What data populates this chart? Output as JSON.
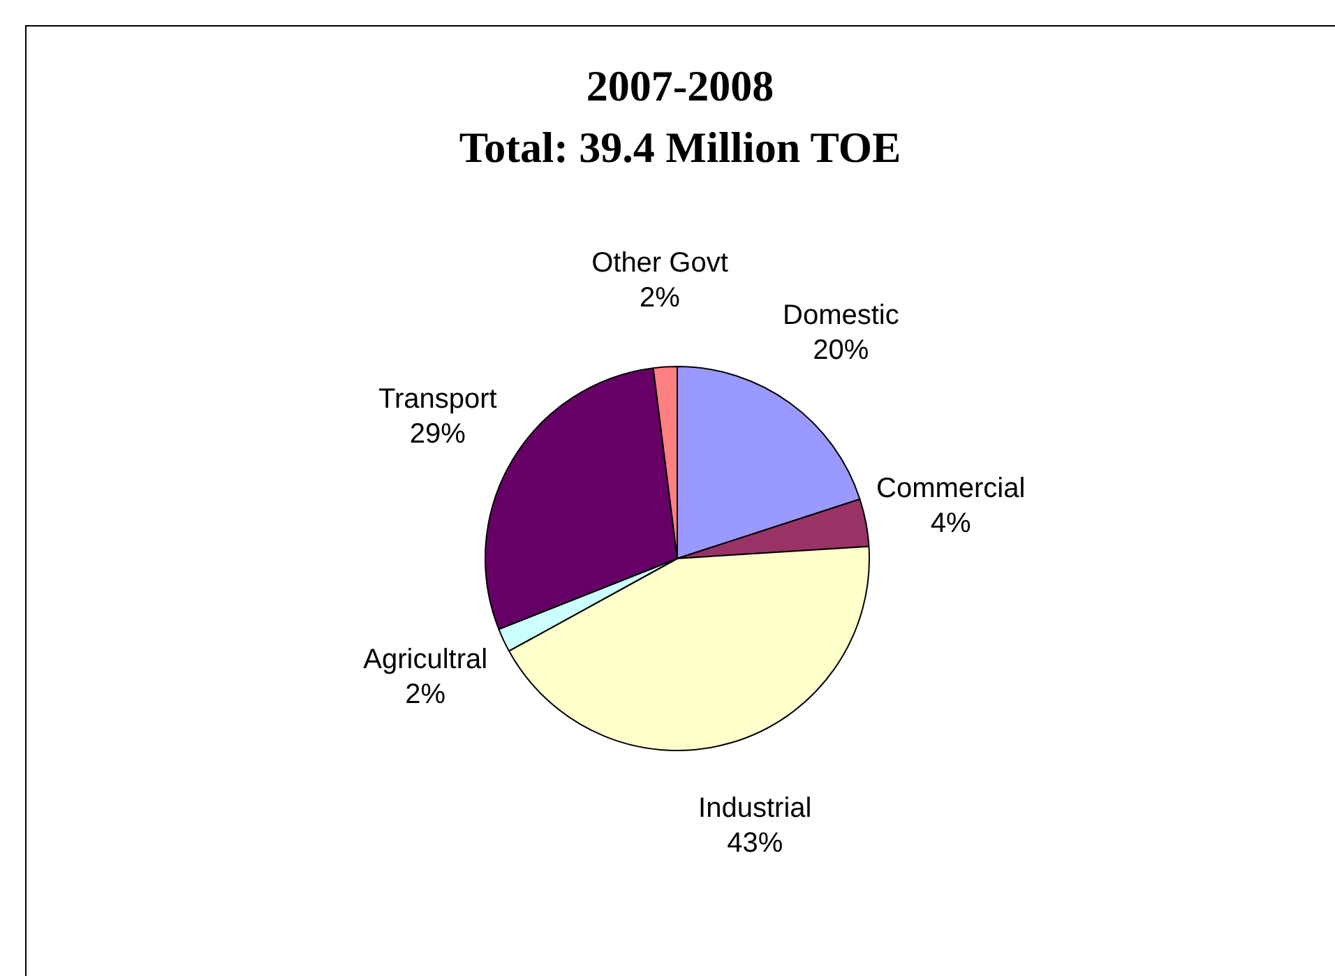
{
  "chart_data": {
    "type": "pie",
    "title": "2007-2008",
    "subtitle": "Total: 39.4 Million TOE",
    "categories": [
      "Domestic",
      "Commercial",
      "Industrial",
      "Agricultral",
      "Transport",
      "Other Govt"
    ],
    "values": [
      20,
      4,
      43,
      2,
      29,
      2
    ],
    "value_labels": [
      "20%",
      "4%",
      "43%",
      "2%",
      "29%",
      "2%"
    ],
    "colors": [
      "#9999ff",
      "#993366",
      "#ffffcc",
      "#ccffff",
      "#660066",
      "#ff8080"
    ],
    "legend": false
  }
}
